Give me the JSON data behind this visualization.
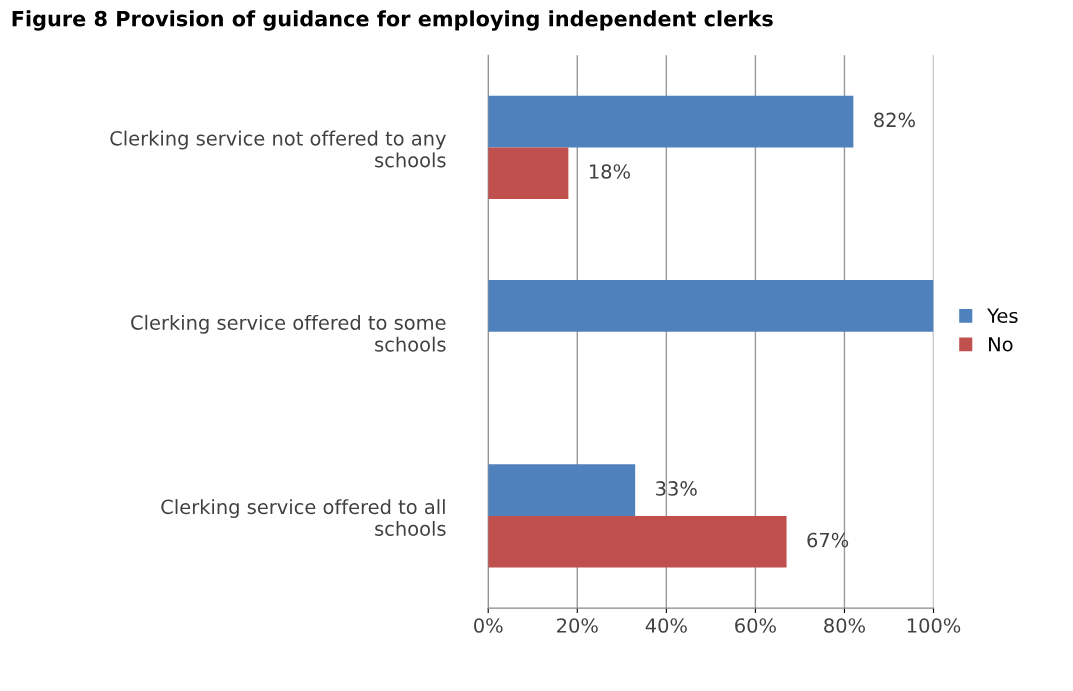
{
  "chart_data": {
    "type": "bar",
    "orientation": "horizontal",
    "title": "Figure 8 Provision of guidance for employing independent clerks",
    "categories": [
      "Clerking service not offered to any\nschools",
      "Clerking service offered to some\nschools",
      "Clerking service offered to all\nschools"
    ],
    "series": [
      {
        "name": "Yes",
        "color": "#4f81bd",
        "values": [
          82,
          100,
          33
        ],
        "value_labels": [
          "82%",
          null,
          "33%"
        ]
      },
      {
        "name": "No",
        "color": "#c0504d",
        "values": [
          18,
          0,
          67
        ],
        "value_labels": [
          "18%",
          null,
          "67%"
        ]
      }
    ],
    "xlim": [
      0,
      100
    ],
    "xticks": [
      {
        "value": 0,
        "label": "0%"
      },
      {
        "value": 20,
        "label": "20%"
      },
      {
        "value": 40,
        "label": "40%"
      },
      {
        "value": 60,
        "label": "60%"
      },
      {
        "value": 80,
        "label": "80%"
      },
      {
        "value": 100,
        "label": "100%"
      }
    ],
    "grid": "x",
    "legend": "right"
  }
}
